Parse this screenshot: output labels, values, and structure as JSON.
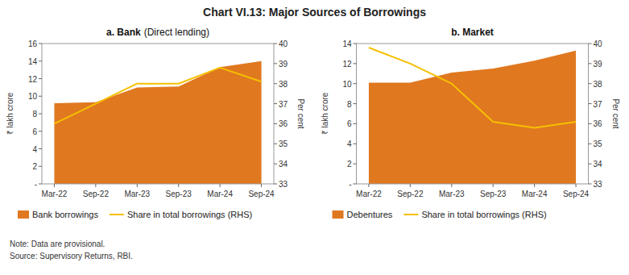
{
  "title": "Chart VI.13: Major Sources of Borrowings",
  "annotations": [
    "Note: Data are provisional.",
    "Source: Supervisory Returns, RBI."
  ],
  "chart_data": [
    {
      "type": "area",
      "title": "a. Bank",
      "subtitle": "(Direct lending)",
      "categories": [
        "Mar-22",
        "Sep-22",
        "Mar-23",
        "Sep-23",
        "Mar-24",
        "Sep-24"
      ],
      "series": [
        {
          "name": "Bank borrowings",
          "type": "area",
          "color": "#e07820",
          "values": [
            9.2,
            9.3,
            11.0,
            11.1,
            13.3,
            14.0
          ]
        },
        {
          "name": "Share in total borrowings (RHS)",
          "type": "line",
          "color": "#f5c000",
          "axis": "y2",
          "values": [
            36.0,
            37.0,
            38.0,
            38.0,
            38.8,
            38.1
          ]
        }
      ],
      "ylim": [
        0,
        16
      ],
      "yticks": [
        {
          "value": 0,
          "label": "-"
        },
        2,
        4,
        6,
        8,
        10,
        12,
        14,
        16
      ],
      "y2lim": [
        33,
        40
      ],
      "y2ticks": [
        33,
        34,
        35,
        36,
        37,
        38,
        39,
        40
      ],
      "ylabel": "₹ lakh crore",
      "y2label": "Per cent",
      "legend": "bottom",
      "grid": false
    },
    {
      "type": "area",
      "title": "b. Market",
      "categories": [
        "Mar-22",
        "Sep-22",
        "Mar-23",
        "Sep-23",
        "Mar-24",
        "Sep-24"
      ],
      "series": [
        {
          "name": "Debentures",
          "type": "area",
          "color": "#e07820",
          "values": [
            10.1,
            10.1,
            11.1,
            11.5,
            12.3,
            13.3
          ]
        },
        {
          "name": "Share in total borrowings (RHS)",
          "type": "line",
          "color": "#f5c000",
          "axis": "y2",
          "values": [
            39.8,
            39.0,
            38.0,
            36.1,
            35.8,
            36.1
          ]
        }
      ],
      "ylim": [
        0,
        14
      ],
      "yticks": [
        {
          "value": 0,
          "label": "-"
        },
        2,
        4,
        6,
        8,
        10,
        12,
        14
      ],
      "y2lim": [
        33,
        40
      ],
      "y2ticks": [
        33,
        34,
        35,
        36,
        37,
        38,
        39,
        40
      ],
      "ylabel": "₹ lakh crore",
      "y2label": "Per cent",
      "legend": "bottom",
      "grid": false
    }
  ]
}
